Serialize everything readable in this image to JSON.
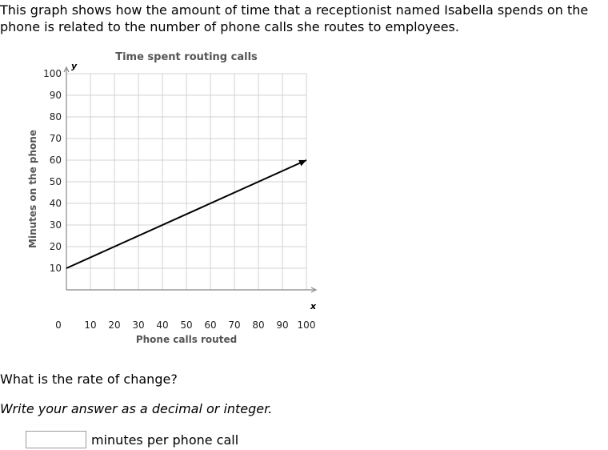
{
  "question": {
    "line1": "This graph shows how the amount of time that a receptionist named Isabella spends on the",
    "line2": "phone is related to the number of phone calls she routes to employees."
  },
  "chart_data": {
    "type": "line",
    "title": "Time spent routing calls",
    "xlabel": "Phone calls routed",
    "ylabel": "Minutes on the phone",
    "x_var": "x",
    "y_var": "y",
    "xlim": [
      0,
      100
    ],
    "ylim": [
      0,
      100
    ],
    "x_ticks": [
      10,
      20,
      30,
      40,
      50,
      60,
      70,
      80,
      90,
      100
    ],
    "y_ticks": [
      10,
      20,
      30,
      40,
      50,
      60,
      70,
      80,
      90,
      100
    ],
    "origin_label": "0",
    "grid": true,
    "series": [
      {
        "x": [
          0,
          100
        ],
        "y": [
          10,
          60
        ],
        "color": "#000000",
        "arrow_end": true
      }
    ]
  },
  "prompt": "What is the rate of change?",
  "instruction": "Write your answer as a decimal or integer.",
  "answer": {
    "value": "",
    "unit": "minutes per phone call"
  }
}
